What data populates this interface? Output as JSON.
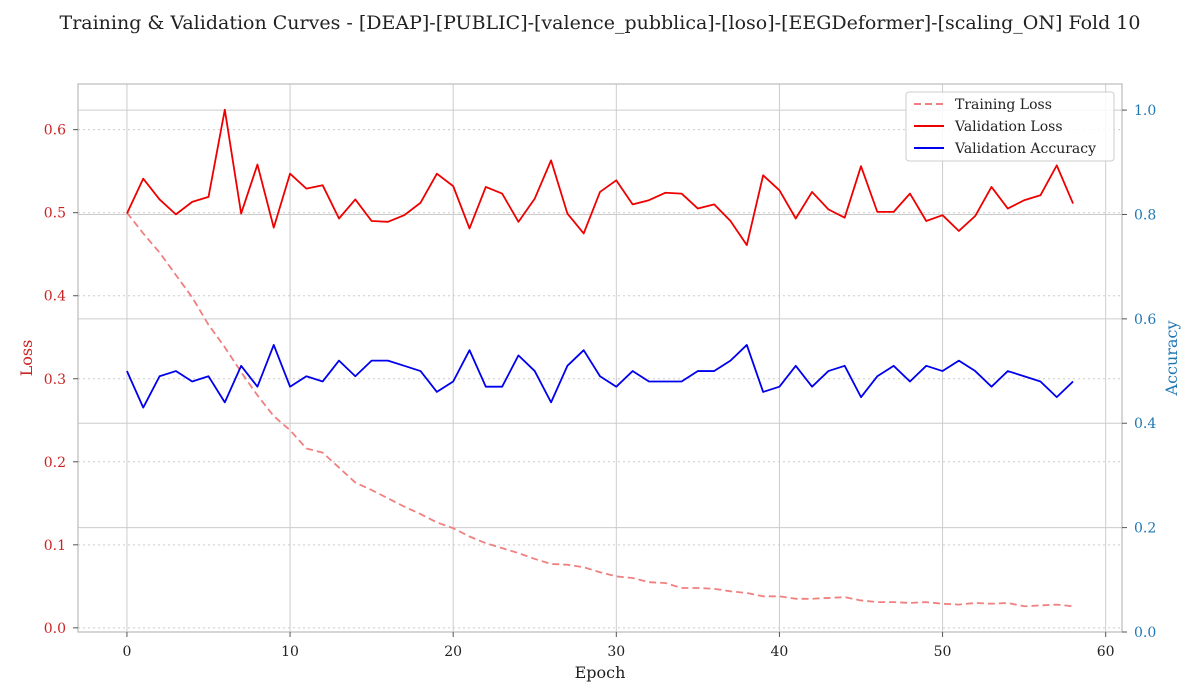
{
  "chart_data": {
    "type": "line",
    "title": "Training & Validation Curves - [DEAP]-[PUBLIC]-[valence_pubblica]-[loso]-[EEGDeformer]-[scaling_ON] Fold 10",
    "xlabel": "Epoch",
    "ylabel_left": "Loss",
    "ylabel_right": "Accuracy",
    "xlim": [
      -3,
      61
    ],
    "ylim_left": [
      -0.005,
      0.655
    ],
    "ylim_right": [
      0.0,
      1.05
    ],
    "xticks": [
      0,
      10,
      20,
      30,
      40,
      50,
      60
    ],
    "yticks_left": [
      0.0,
      0.1,
      0.2,
      0.3,
      0.4,
      0.5,
      0.6
    ],
    "yticks_right": [
      0.0,
      0.2,
      0.4,
      0.6,
      0.8,
      1.0
    ],
    "legend_position": "top-right",
    "grid": true,
    "colors": {
      "training_loss": "#f08080",
      "validation_loss": "#ee0000",
      "validation_accuracy": "#0000ee",
      "loss_axis": "#cc2222",
      "accuracy_axis": "#1f77b4"
    },
    "x": [
      0,
      1,
      2,
      3,
      4,
      5,
      6,
      7,
      8,
      9,
      10,
      11,
      12,
      13,
      14,
      15,
      16,
      17,
      18,
      19,
      20,
      21,
      22,
      23,
      24,
      25,
      26,
      27,
      28,
      29,
      30,
      31,
      32,
      33,
      34,
      35,
      36,
      37,
      38,
      39,
      40,
      41,
      42,
      43,
      44,
      45,
      46,
      47,
      48,
      49,
      50,
      51,
      52,
      53,
      54,
      55,
      56,
      57,
      58
    ],
    "series": [
      {
        "name": "Training Loss",
        "axis": "left",
        "style": "dashed",
        "values": [
          0.5,
          0.475,
          0.452,
          0.425,
          0.398,
          0.365,
          0.338,
          0.308,
          0.28,
          0.255,
          0.238,
          0.216,
          0.211,
          0.193,
          0.175,
          0.166,
          0.156,
          0.146,
          0.137,
          0.127,
          0.12,
          0.11,
          0.102,
          0.096,
          0.09,
          0.083,
          0.077,
          0.076,
          0.073,
          0.067,
          0.062,
          0.06,
          0.055,
          0.054,
          0.048,
          0.048,
          0.047,
          0.044,
          0.042,
          0.038,
          0.038,
          0.035,
          0.035,
          0.036,
          0.037,
          0.033,
          0.031,
          0.031,
          0.03,
          0.031,
          0.029,
          0.028,
          0.03,
          0.029,
          0.03,
          0.026,
          0.027,
          0.028,
          0.026
        ]
      },
      {
        "name": "Validation Loss",
        "axis": "left",
        "style": "solid",
        "values": [
          0.499,
          0.541,
          0.516,
          0.498,
          0.513,
          0.519,
          0.624,
          0.499,
          0.558,
          0.482,
          0.547,
          0.529,
          0.533,
          0.493,
          0.516,
          0.49,
          0.489,
          0.497,
          0.512,
          0.547,
          0.532,
          0.481,
          0.531,
          0.523,
          0.489,
          0.517,
          0.563,
          0.499,
          0.475,
          0.525,
          0.539,
          0.51,
          0.515,
          0.524,
          0.523,
          0.505,
          0.51,
          0.49,
          0.461,
          0.545,
          0.527,
          0.493,
          0.525,
          0.504,
          0.494,
          0.556,
          0.501,
          0.501,
          0.523,
          0.49,
          0.497,
          0.478,
          0.496,
          0.531,
          0.505,
          0.515,
          0.521,
          0.557,
          0.511
        ]
      },
      {
        "name": "Validation Accuracy",
        "axis": "right",
        "style": "solid",
        "values": [
          0.5,
          0.43,
          0.49,
          0.5,
          0.48,
          0.49,
          0.44,
          0.51,
          0.47,
          0.55,
          0.47,
          0.49,
          0.48,
          0.52,
          0.49,
          0.52,
          0.52,
          0.51,
          0.5,
          0.46,
          0.48,
          0.54,
          0.47,
          0.47,
          0.53,
          0.5,
          0.44,
          0.51,
          0.54,
          0.49,
          0.47,
          0.5,
          0.48,
          0.48,
          0.48,
          0.5,
          0.5,
          0.52,
          0.55,
          0.46,
          0.47,
          0.51,
          0.47,
          0.5,
          0.51,
          0.45,
          0.49,
          0.51,
          0.48,
          0.51,
          0.5,
          0.52,
          0.5,
          0.47,
          0.5,
          0.49,
          0.48,
          0.45,
          0.48
        ]
      }
    ]
  }
}
